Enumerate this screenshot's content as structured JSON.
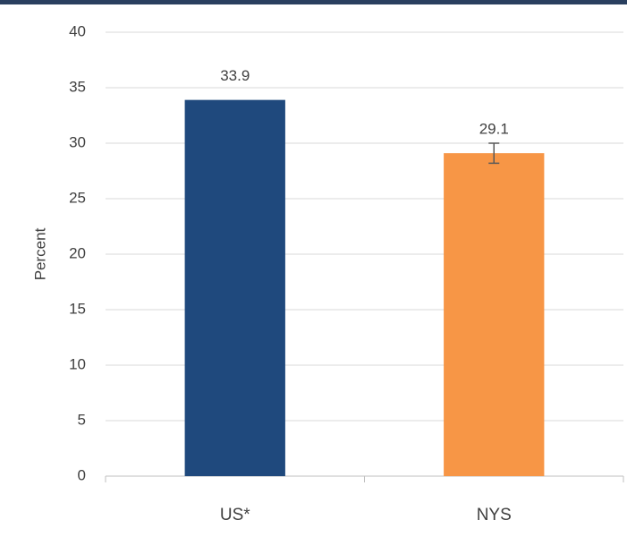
{
  "chart_data": {
    "type": "bar",
    "categories": [
      "US*",
      "NYS"
    ],
    "values": [
      33.9,
      29.1
    ],
    "errors": [
      null,
      0.9
    ],
    "colors": [
      "#1f497d",
      "#f79646"
    ],
    "y_label": "Percent",
    "ylim": [
      0,
      40
    ],
    "yticks": [
      0,
      5,
      10,
      15,
      20,
      25,
      30,
      35,
      40
    ],
    "grid": true
  }
}
